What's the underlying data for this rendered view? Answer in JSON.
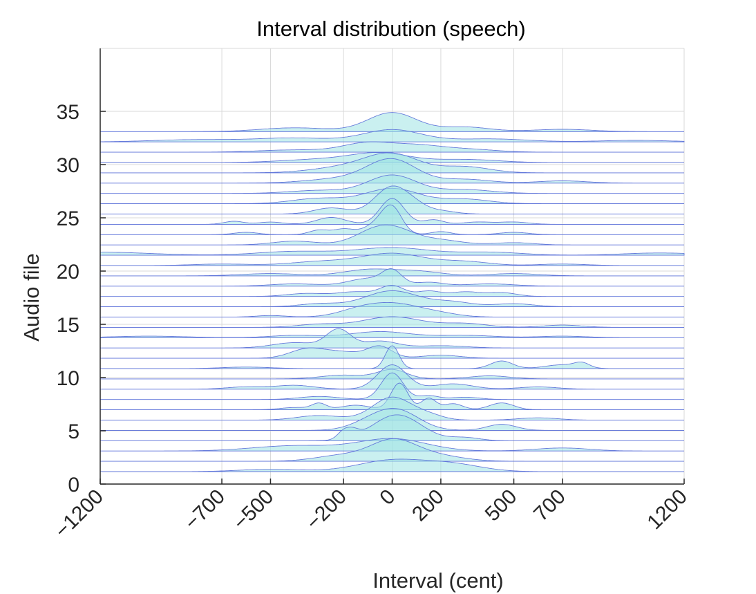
{
  "chart_data": {
    "type": "area",
    "title": "Interval distribution (speech)",
    "xlabel": "Interval (cent)",
    "ylabel": "Audio file",
    "xlim": [
      -1200,
      1200
    ],
    "ylim": [
      0,
      35
    ],
    "x_ticks": [
      -1200,
      -700,
      -500,
      -200,
      0,
      200,
      500,
      700,
      1200
    ],
    "y_ticks": [
      0,
      5,
      10,
      15,
      20,
      25,
      30,
      35
    ],
    "grid": true,
    "legend": "none",
    "colors": {
      "fill": "#9ee3e3",
      "line": "#5a6fd8",
      "grid": "#d9d9d9",
      "axis": "#262626"
    },
    "series": [
      {
        "values": [
          [
            -500,
            0.3,
            130
          ],
          [
            0,
            1.5,
            140
          ],
          [
            250,
            0.9,
            120
          ]
        ]
      },
      {
        "values": [
          [
            -200,
            0.8,
            110
          ],
          [
            0,
            2.4,
            90
          ],
          [
            150,
            0.9,
            120
          ]
        ]
      },
      {
        "values": [
          [
            -400,
            0.7,
            170
          ],
          [
            0,
            1.6,
            140
          ],
          [
            700,
            0.4,
            110
          ]
        ]
      },
      {
        "values": [
          [
            -200,
            1.0,
            25
          ],
          [
            -160,
            0.8,
            25
          ],
          [
            20,
            3.4,
            100
          ],
          [
            300,
            0.4,
            60
          ]
        ]
      },
      {
        "values": [
          [
            -100,
            0.8,
            80
          ],
          [
            20,
            2.6,
            90
          ],
          [
            450,
            0.8,
            60
          ]
        ]
      },
      {
        "values": [
          [
            -300,
            0.6,
            90
          ],
          [
            0,
            3.0,
            80
          ],
          [
            150,
            0.6,
            60
          ],
          [
            600,
            0.3,
            80
          ]
        ]
      },
      {
        "values": [
          [
            -400,
            0.3,
            60
          ],
          [
            -300,
            0.8,
            30
          ],
          [
            -150,
            0.6,
            60
          ],
          [
            30,
            3.5,
            35
          ],
          [
            150,
            1.5,
            30
          ],
          [
            250,
            0.8,
            40
          ],
          [
            450,
            0.9,
            50
          ]
        ]
      },
      {
        "values": [
          [
            -300,
            0.4,
            80
          ],
          [
            0,
            3.5,
            45
          ],
          [
            150,
            0.5,
            40
          ],
          [
            300,
            0.3,
            60
          ]
        ]
      },
      {
        "values": [
          [
            -600,
            0.3,
            80
          ],
          [
            -400,
            0.5,
            80
          ],
          [
            0,
            3.2,
            60
          ],
          [
            250,
            0.7,
            80
          ],
          [
            600,
            0.3,
            80
          ]
        ]
      },
      {
        "values": [
          [
            -200,
            0.5,
            90
          ],
          [
            0,
            1.2,
            60
          ],
          [
            400,
            0.4,
            80
          ]
        ]
      },
      {
        "values": [
          [
            -600,
            0.2,
            100
          ],
          [
            0,
            3.0,
            28
          ],
          [
            450,
            1.0,
            45
          ],
          [
            700,
            0.5,
            70
          ],
          [
            780,
            0.6,
            30
          ]
        ]
      },
      {
        "values": [
          [
            -350,
            1.2,
            70
          ],
          [
            -200,
            0.8,
            80
          ],
          [
            -50,
            1.5,
            50
          ],
          [
            200,
            0.4,
            80
          ]
        ]
      },
      {
        "values": [
          [
            -400,
            0.7,
            90
          ],
          [
            -220,
            2.4,
            50
          ],
          [
            -50,
            0.9,
            70
          ],
          [
            200,
            0.3,
            100
          ]
        ]
      },
      {
        "values": [
          [
            -1000,
            0.2,
            150
          ],
          [
            -400,
            0.3,
            100
          ],
          [
            -50,
            0.8,
            120
          ],
          [
            300,
            0.3,
            120
          ],
          [
            700,
            0.2,
            100
          ]
        ]
      },
      {
        "values": [
          [
            -300,
            0.4,
            90
          ],
          [
            0,
            1.4,
            120
          ],
          [
            300,
            0.5,
            90
          ],
          [
            700,
            0.3,
            80
          ]
        ]
      },
      {
        "values": [
          [
            -500,
            0.2,
            60
          ],
          [
            -150,
            0.5,
            80
          ],
          [
            0,
            1.8,
            120
          ],
          [
            200,
            0.3,
            80
          ]
        ]
      },
      {
        "values": [
          [
            -300,
            0.4,
            80
          ],
          [
            0,
            2.1,
            110
          ],
          [
            250,
            0.6,
            80
          ],
          [
            500,
            0.4,
            80
          ]
        ]
      },
      {
        "values": [
          [
            -350,
            0.4,
            80
          ],
          [
            -150,
            0.6,
            70
          ],
          [
            0,
            1.4,
            50
          ],
          [
            150,
            0.7,
            50
          ],
          [
            300,
            0.6,
            60
          ],
          [
            450,
            0.5,
            60
          ]
        ]
      },
      {
        "values": [
          [
            -400,
            0.3,
            100
          ],
          [
            -100,
            1.0,
            80
          ],
          [
            0,
            1.8,
            40
          ],
          [
            150,
            0.5,
            60
          ],
          [
            400,
            0.3,
            100
          ]
        ]
      },
      {
        "values": [
          [
            -500,
            0.3,
            120
          ],
          [
            -100,
            0.8,
            100
          ],
          [
            100,
            0.6,
            100
          ],
          [
            500,
            0.3,
            100
          ]
        ]
      },
      {
        "values": [
          [
            -700,
            0.2,
            120
          ],
          [
            -300,
            0.5,
            120
          ],
          [
            0,
            1.6,
            130
          ],
          [
            300,
            0.5,
            100
          ],
          [
            700,
            0.2,
            100
          ]
        ]
      },
      {
        "values": [
          [
            -1200,
            0.4,
            200
          ],
          [
            -400,
            0.5,
            150
          ],
          [
            0,
            1.0,
            150
          ],
          [
            400,
            0.4,
            130
          ],
          [
            1100,
            0.3,
            150
          ]
        ]
      },
      {
        "values": [
          [
            -400,
            0.5,
            90
          ],
          [
            -100,
            0.9,
            80
          ],
          [
            0,
            2.1,
            90
          ],
          [
            200,
            0.6,
            90
          ],
          [
            500,
            0.3,
            80
          ]
        ]
      },
      {
        "values": [
          [
            -600,
            0.3,
            50
          ],
          [
            -300,
            0.6,
            40
          ],
          [
            -200,
            0.7,
            40
          ],
          [
            -50,
            1.5,
            60
          ],
          [
            0,
            2.8,
            40
          ],
          [
            200,
            0.4,
            40
          ],
          [
            500,
            0.3,
            60
          ]
        ]
      },
      {
        "values": [
          [
            -650,
            0.4,
            40
          ],
          [
            -500,
            0.3,
            50
          ],
          [
            -250,
            0.9,
            60
          ],
          [
            0,
            3.4,
            50
          ],
          [
            170,
            0.6,
            40
          ],
          [
            350,
            0.3,
            60
          ],
          [
            500,
            0.3,
            60
          ]
        ]
      },
      {
        "values": [
          [
            -250,
            0.8,
            70
          ],
          [
            0,
            3.6,
            70
          ],
          [
            100,
            0.6,
            50
          ],
          [
            200,
            0.4,
            60
          ]
        ]
      },
      {
        "values": [
          [
            -300,
            0.7,
            110
          ],
          [
            0,
            2.0,
            110
          ],
          [
            300,
            0.6,
            100
          ]
        ]
      },
      {
        "values": [
          [
            -300,
            0.4,
            120
          ],
          [
            0,
            2.4,
            100
          ],
          [
            300,
            0.5,
            110
          ]
        ]
      },
      {
        "values": [
          [
            -200,
            0.6,
            140
          ],
          [
            0,
            3.0,
            100
          ],
          [
            300,
            0.5,
            100
          ],
          [
            700,
            0.3,
            100
          ]
        ]
      },
      {
        "values": [
          [
            -200,
            0.7,
            130
          ],
          [
            0,
            2.4,
            110
          ],
          [
            300,
            0.8,
            100
          ]
        ]
      },
      {
        "values": [
          [
            -300,
            0.4,
            150
          ],
          [
            -50,
            1.2,
            120
          ],
          [
            300,
            0.4,
            130
          ]
        ]
      },
      {
        "values": [
          [
            -400,
            0.3,
            150
          ],
          [
            -100,
            1.2,
            100
          ],
          [
            100,
            0.8,
            100
          ],
          [
            300,
            0.4,
            120
          ]
        ]
      },
      {
        "values": [
          [
            -800,
            0.3,
            180
          ],
          [
            -400,
            0.5,
            150
          ],
          [
            0,
            1.6,
            120
          ],
          [
            400,
            0.4,
            150
          ],
          [
            1000,
            0.2,
            150
          ]
        ]
      },
      {
        "values": [
          [
            -400,
            0.5,
            140
          ],
          [
            0,
            2.5,
            100
          ],
          [
            300,
            0.6,
            100
          ],
          [
            700,
            0.3,
            120
          ]
        ]
      }
    ]
  }
}
